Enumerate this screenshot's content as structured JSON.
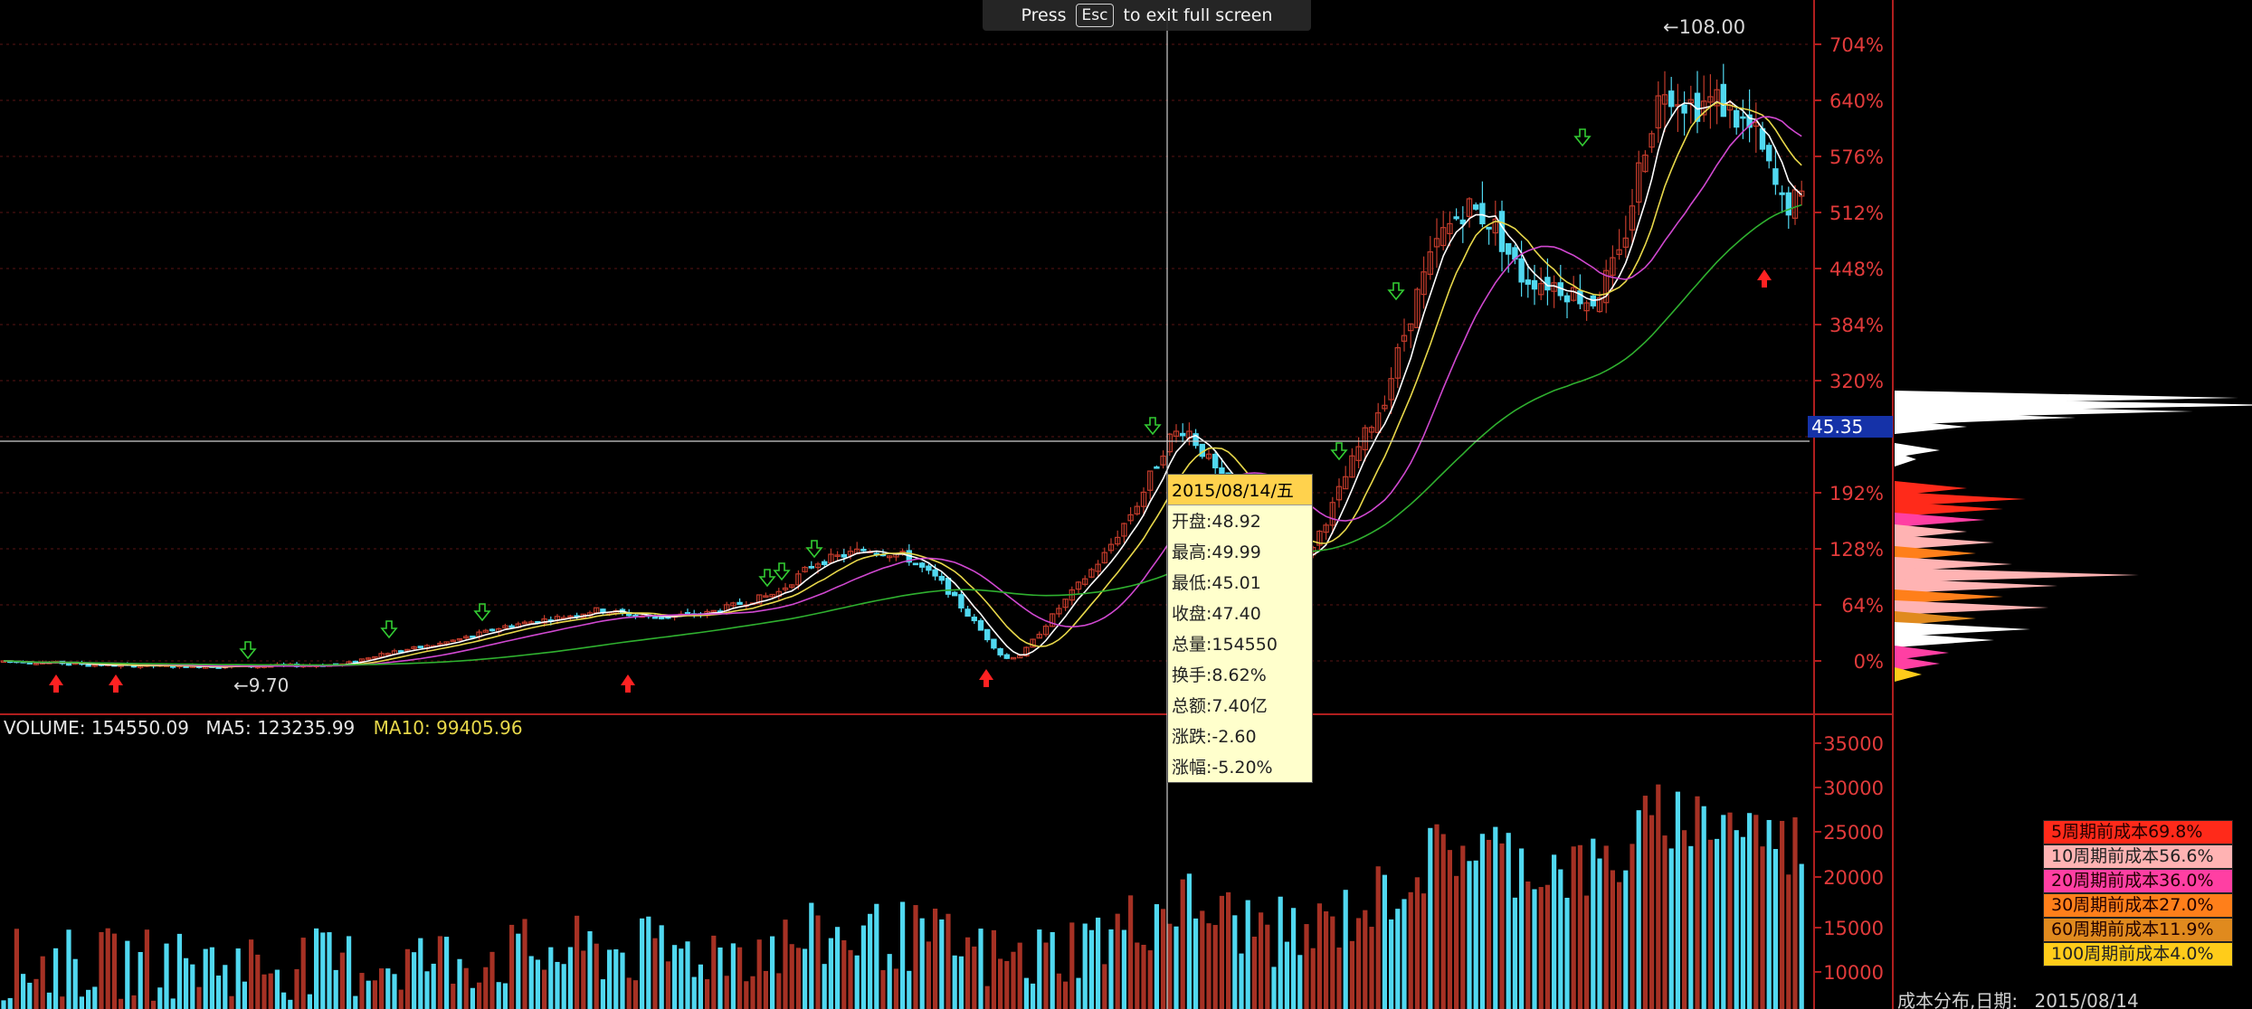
{
  "banner": {
    "press": "Press",
    "key": "Esc",
    "rest": "to exit full screen"
  },
  "chart_data": {
    "type": "candlestick",
    "price_axis": {
      "scale": "log",
      "ticks": [
        "704%",
        "640%",
        "576%",
        "512%",
        "448%",
        "384%",
        "320%",
        "192%",
        "128%",
        "64%",
        "0%"
      ],
      "range_pct": [
        -18,
        735
      ]
    },
    "volume_axis": {
      "ticks": [
        "35000",
        "30000",
        "25000",
        "20000",
        "15000",
        "10000"
      ],
      "range": [
        5000,
        38000
      ]
    },
    "annotations": {
      "high_marker": "108.00",
      "low_marker": "9.70"
    },
    "crosshair": {
      "price_tag": "45.35"
    },
    "tooltip": {
      "date": "2015/08/14/五",
      "rows": [
        "开盘:48.92",
        "最高:49.99",
        "最低:45.01",
        "收盘:47.40",
        "总量:154550",
        "换手:8.62%",
        "总额:7.40亿",
        "涨跌:-2.60",
        "涨幅:-5.20%"
      ]
    },
    "volume_header": {
      "volume": "VOLUME: 154550.09",
      "ma5": "MA5: 123235.99",
      "ma10": "MA10: 99405.96"
    },
    "cost_distribution": {
      "legend": [
        {
          "label": "5周期前成本69.8%",
          "color": "#ff2a1a"
        },
        {
          "label": "10周期前成本56.6%",
          "color": "#ffb3b3"
        },
        {
          "label": "20周期前成本36.0%",
          "color": "#ff3fa3"
        },
        {
          "label": "30周期前成本27.0%",
          "color": "#ff7f1a"
        },
        {
          "label": "60周期前成本11.9%",
          "color": "#e08a1e"
        },
        {
          "label": "100周期前成本4.0%",
          "color": "#ffcc1a"
        }
      ],
      "footer_label": "成本分布,日期:",
      "footer_date": "2015/08/14"
    },
    "series": [
      {
        "name": "K",
        "color_up": "#c23b2b",
        "color_down": "#50d8f0"
      },
      {
        "name": "MA5",
        "color": "#ffffff"
      },
      {
        "name": "MA10",
        "color": "#e8d84a"
      },
      {
        "name": "MA20",
        "color": "#d048d0"
      },
      {
        "name": "MA60",
        "color": "#2fb02f"
      }
    ]
  }
}
